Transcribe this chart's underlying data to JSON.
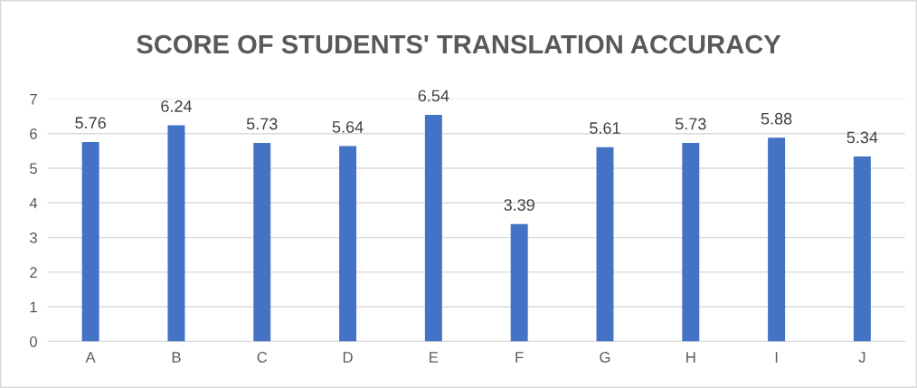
{
  "chart_data": {
    "type": "bar",
    "title": "SCORE OF STUDENTS' TRANSLATION ACCURACY",
    "categories": [
      "A",
      "B",
      "C",
      "D",
      "E",
      "F",
      "G",
      "H",
      "I",
      "J"
    ],
    "values": [
      5.76,
      6.24,
      5.73,
      5.64,
      6.54,
      3.39,
      5.61,
      5.73,
      5.88,
      5.34
    ],
    "color": "#4472c4",
    "ylim": [
      0,
      7
    ],
    "yticks": [
      0,
      1,
      2,
      3,
      4,
      5,
      6,
      7
    ],
    "grid": "y",
    "data_labels": true
  }
}
